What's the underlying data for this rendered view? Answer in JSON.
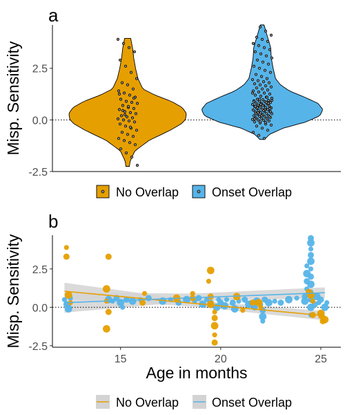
{
  "colors": {
    "no_overlap": "#E69F00",
    "onset_overlap": "#56B4E9",
    "ribbon": "#D3D3D3",
    "axis": "#000000",
    "tick_text": "#4D4D4D"
  },
  "chart_data": [
    {
      "panel": "a",
      "type": "violin",
      "ylabel": "Misp. Sensitivity",
      "ylim": [
        -2.5,
        4.6
      ],
      "yticks": [
        -2.5,
        0.0,
        2.5
      ],
      "ytick_labels": [
        "-2.5",
        "0.0",
        "2.5"
      ],
      "reference_line_y": 0,
      "legend_position": "bottom",
      "categories": [
        "No Overlap",
        "Onset Overlap"
      ],
      "series": [
        {
          "name": "No Overlap",
          "color": "#E69F00",
          "range": [
            -2.25,
            3.95
          ],
          "density": [
            [
              -2.25,
              0.03
            ],
            [
              -2.0,
              0.04
            ],
            [
              -1.5,
              0.12
            ],
            [
              -1.0,
              0.35
            ],
            [
              -0.5,
              0.7
            ],
            [
              -0.2,
              0.88
            ],
            [
              0.0,
              0.95
            ],
            [
              0.3,
              0.97
            ],
            [
              0.6,
              0.9
            ],
            [
              0.9,
              0.72
            ],
            [
              1.2,
              0.45
            ],
            [
              1.5,
              0.25
            ],
            [
              2.0,
              0.17
            ],
            [
              2.5,
              0.13
            ],
            [
              3.0,
              0.1
            ],
            [
              3.5,
              0.08
            ],
            [
              3.95,
              0.05
            ]
          ],
          "points": [
            3.9,
            3.7,
            3.5,
            3.3,
            2.9,
            2.6,
            2.3,
            2.0,
            1.8,
            1.7,
            1.5,
            1.4,
            1.3,
            1.2,
            1.1,
            1.0,
            0.9,
            0.85,
            0.8,
            0.7,
            0.6,
            0.55,
            0.5,
            0.4,
            0.35,
            0.3,
            0.2,
            0.15,
            0.1,
            0.05,
            0.0,
            -0.05,
            -0.1,
            -0.2,
            -0.3,
            -0.4,
            -0.5,
            -0.6,
            -0.7,
            -0.8,
            -0.9,
            -1.0,
            -1.1,
            -1.2,
            -1.4,
            -1.6,
            -1.8,
            -2.2,
            0.45,
            0.65,
            1.05,
            1.25,
            0.25,
            -0.35
          ]
        },
        {
          "name": "Onset Overlap",
          "color": "#56B4E9",
          "range": [
            -0.95,
            4.6
          ],
          "density": [
            [
              -0.95,
              0.04
            ],
            [
              -0.7,
              0.12
            ],
            [
              -0.4,
              0.35
            ],
            [
              -0.1,
              0.72
            ],
            [
              0.2,
              0.95
            ],
            [
              0.5,
              1.0
            ],
            [
              0.8,
              0.92
            ],
            [
              1.1,
              0.7
            ],
            [
              1.4,
              0.45
            ],
            [
              1.7,
              0.3
            ],
            [
              2.0,
              0.22
            ],
            [
              2.5,
              0.18
            ],
            [
              3.0,
              0.15
            ],
            [
              3.5,
              0.14
            ],
            [
              4.0,
              0.09
            ],
            [
              4.3,
              0.06
            ],
            [
              4.6,
              0.03
            ]
          ],
          "points": [
            4.5,
            4.3,
            4.1,
            4.0,
            3.9,
            3.8,
            3.7,
            3.6,
            3.5,
            3.4,
            3.3,
            3.2,
            3.1,
            3.0,
            2.9,
            2.8,
            2.7,
            2.6,
            2.5,
            2.4,
            2.3,
            2.2,
            2.1,
            2.0,
            1.95,
            1.9,
            1.85,
            1.8,
            1.75,
            1.7,
            1.65,
            1.6,
            1.55,
            1.5,
            1.45,
            1.4,
            1.35,
            1.3,
            1.25,
            1.2,
            1.15,
            1.1,
            1.05,
            1.0,
            0.98,
            0.95,
            0.92,
            0.9,
            0.88,
            0.85,
            0.82,
            0.8,
            0.78,
            0.75,
            0.72,
            0.7,
            0.68,
            0.65,
            0.62,
            0.6,
            0.58,
            0.55,
            0.52,
            0.5,
            0.48,
            0.45,
            0.42,
            0.4,
            0.38,
            0.35,
            0.32,
            0.3,
            0.28,
            0.25,
            0.22,
            0.2,
            0.18,
            0.15,
            0.12,
            0.1,
            0.08,
            0.05,
            0.02,
            0.0,
            -0.02,
            -0.05,
            -0.1,
            -0.15,
            -0.2,
            -0.25,
            -0.3,
            -0.4,
            -0.5,
            -0.6,
            -0.75,
            -0.9,
            0.55,
            0.65,
            0.75,
            0.85,
            0.95,
            0.6,
            0.7,
            0.8,
            0.9,
            1.0,
            0.5,
            0.4,
            0.3,
            0.2,
            1.1,
            1.3,
            0.35,
            0.45,
            0.15,
            0.05,
            -0.08,
            -0.12
          ]
        }
      ]
    },
    {
      "panel": "b",
      "type": "scatter",
      "xlabel": "Age in months",
      "ylabel": "Misp. Sensitivity",
      "xlim": [
        11.6,
        26.0
      ],
      "ylim": [
        -2.6,
        4.7
      ],
      "xticks": [
        15,
        20,
        25
      ],
      "xtick_labels": [
        "15",
        "20",
        "25"
      ],
      "yticks": [
        -2.5,
        0.0,
        2.5
      ],
      "ytick_labels": [
        "-2.5",
        "0.0",
        "2.5"
      ],
      "reference_line_y": 0,
      "legend_position": "bottom",
      "series": [
        {
          "name": "No Overlap",
          "color": "#E69F00",
          "trend": {
            "x": [
              12.2,
              25.2
            ],
            "y": [
              1.05,
              -0.55
            ]
          },
          "ribbon": {
            "x": [
              12.2,
              18.7,
              25.2
            ],
            "lower": [
              0.55,
              0.05,
              -0.85
            ],
            "upper": [
              1.6,
              0.45,
              -0.25
            ]
          },
          "points": [
            [
              12.3,
              3.9
            ],
            [
              12.3,
              3.3
            ],
            [
              12.4,
              0.8
            ],
            [
              12.5,
              0.3
            ],
            [
              14.4,
              3.3
            ],
            [
              14.3,
              1.2
            ],
            [
              14.3,
              0.4
            ],
            [
              14.4,
              -0.3
            ],
            [
              14.3,
              -1.4
            ],
            [
              16.2,
              0.9
            ],
            [
              16.1,
              0.3
            ],
            [
              17.8,
              0.6
            ],
            [
              18.6,
              0.9
            ],
            [
              18.6,
              0.6
            ],
            [
              19.5,
              2.4
            ],
            [
              19.4,
              1.7
            ],
            [
              19.5,
              0.7
            ],
            [
              19.5,
              0.2
            ],
            [
              19.7,
              -0.3
            ],
            [
              19.7,
              -0.7
            ],
            [
              19.7,
              -1.2
            ],
            [
              19.7,
              -1.8
            ],
            [
              19.7,
              -2.3
            ],
            [
              20.8,
              0.7
            ],
            [
              21.1,
              -0.2
            ],
            [
              21.6,
              0.3
            ],
            [
              21.9,
              0.3
            ],
            [
              22.0,
              0.0
            ],
            [
              24.4,
              1.0
            ],
            [
              24.5,
              0.8
            ],
            [
              24.6,
              0.4
            ],
            [
              24.6,
              -0.5
            ],
            [
              25.0,
              -0.4
            ],
            [
              25.0,
              -0.6
            ],
            [
              25.1,
              -0.9
            ],
            [
              25.2,
              -0.8
            ]
          ]
        },
        {
          "name": "Onset Overlap",
          "color": "#56B4E9",
          "trend": {
            "x": [
              12.2,
              25.2
            ],
            "y": [
              0.3,
              0.95
            ]
          },
          "ribbon": {
            "x": [
              12.2,
              18.7,
              25.2
            ],
            "lower": [
              -0.35,
              0.4,
              0.6
            ],
            "upper": [
              0.95,
              0.9,
              1.3
            ]
          },
          "points": [
            [
              12.2,
              0.5
            ],
            [
              12.3,
              0.2
            ],
            [
              12.4,
              -0.1
            ],
            [
              12.5,
              0.6
            ],
            [
              12.4,
              0.0
            ],
            [
              14.4,
              0.5
            ],
            [
              14.6,
              0.4
            ],
            [
              14.8,
              0.6
            ],
            [
              15.0,
              0.3
            ],
            [
              15.1,
              0.0
            ],
            [
              15.3,
              0.5
            ],
            [
              15.6,
              0.4
            ],
            [
              16.0,
              0.5
            ],
            [
              16.4,
              0.6
            ],
            [
              17.1,
              0.4
            ],
            [
              17.5,
              0.5
            ],
            [
              17.9,
              0.3
            ],
            [
              18.3,
              0.5
            ],
            [
              18.7,
              0.4
            ],
            [
              18.9,
              0.6
            ],
            [
              19.1,
              0.2
            ],
            [
              19.3,
              0.5
            ],
            [
              19.5,
              0.3
            ],
            [
              19.8,
              0.0
            ],
            [
              19.9,
              0.5
            ],
            [
              20.0,
              0.3
            ],
            [
              20.2,
              0.1
            ],
            [
              20.3,
              0.5
            ],
            [
              20.6,
              0.3
            ],
            [
              20.7,
              -0.1
            ],
            [
              20.9,
              0.4
            ],
            [
              21.2,
              0.5
            ],
            [
              21.4,
              0.2
            ],
            [
              21.5,
              0.3
            ],
            [
              21.7,
              0.0
            ],
            [
              21.8,
              0.4
            ],
            [
              22.0,
              0.2
            ],
            [
              22.1,
              -0.2
            ],
            [
              22.1,
              -0.6
            ],
            [
              22.1,
              -0.9
            ],
            [
              22.2,
              0.5
            ],
            [
              22.4,
              0.3
            ],
            [
              22.7,
              0.4
            ],
            [
              23.0,
              0.3
            ],
            [
              23.4,
              0.5
            ],
            [
              23.8,
              0.6
            ],
            [
              24.2,
              0.7
            ],
            [
              24.2,
              0.4
            ],
            [
              24.3,
              1.2
            ],
            [
              24.3,
              1.7
            ],
            [
              24.3,
              2.2
            ],
            [
              24.3,
              2.7
            ],
            [
              24.5,
              4.5
            ],
            [
              24.5,
              4.2
            ],
            [
              24.5,
              3.8
            ],
            [
              24.5,
              3.4
            ],
            [
              24.5,
              3.0
            ],
            [
              24.5,
              2.5
            ],
            [
              24.5,
              2.0
            ],
            [
              24.5,
              1.5
            ],
            [
              24.5,
              1.0
            ],
            [
              24.5,
              0.5
            ],
            [
              24.5,
              0.0
            ],
            [
              24.5,
              -0.5
            ],
            [
              24.7,
              0.2
            ],
            [
              24.8,
              0.7
            ],
            [
              24.9,
              0.3
            ],
            [
              25.0,
              0.5
            ],
            [
              25.2,
              0.0
            ],
            [
              25.3,
              0.3
            ]
          ]
        }
      ]
    }
  ]
}
